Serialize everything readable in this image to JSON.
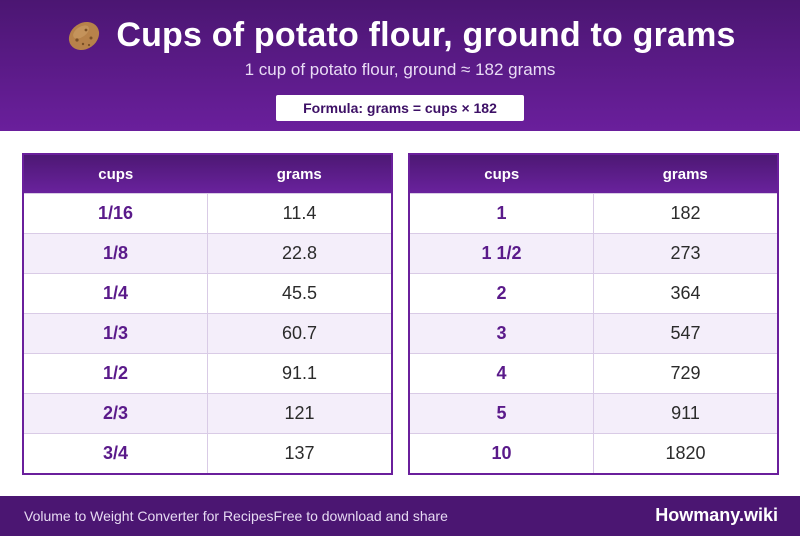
{
  "header": {
    "icon": "potato-icon",
    "title": "Cups of potato flour, ground to grams",
    "subtitle": "1 cup of potato flour, ground ≈ 182 grams",
    "formula": "Formula: grams = cups × 182"
  },
  "tables": {
    "col_cups": "cups",
    "col_grams": "grams",
    "left": [
      {
        "cups": "1/16",
        "grams": "11.4"
      },
      {
        "cups": "1/8",
        "grams": "22.8"
      },
      {
        "cups": "1/4",
        "grams": "45.5"
      },
      {
        "cups": "1/3",
        "grams": "60.7"
      },
      {
        "cups": "1/2",
        "grams": "91.1"
      },
      {
        "cups": "2/3",
        "grams": "121"
      },
      {
        "cups": "3/4",
        "grams": "137"
      }
    ],
    "right": [
      {
        "cups": "1",
        "grams": "182"
      },
      {
        "cups": "1 1/2",
        "grams": "273"
      },
      {
        "cups": "2",
        "grams": "364"
      },
      {
        "cups": "3",
        "grams": "547"
      },
      {
        "cups": "4",
        "grams": "729"
      },
      {
        "cups": "5",
        "grams": "911"
      },
      {
        "cups": "10",
        "grams": "1820"
      }
    ]
  },
  "footer": {
    "converter_text": "Volume to Weight Converter for Recipes",
    "share_text": "Free to download and share",
    "brand": "Howmany.wiki"
  },
  "colors": {
    "brand_purple": "#4b1672",
    "header_gradient_end": "#6a1f9c",
    "cups_text": "#5a1a8a",
    "alt_row": "#f4eefa"
  }
}
